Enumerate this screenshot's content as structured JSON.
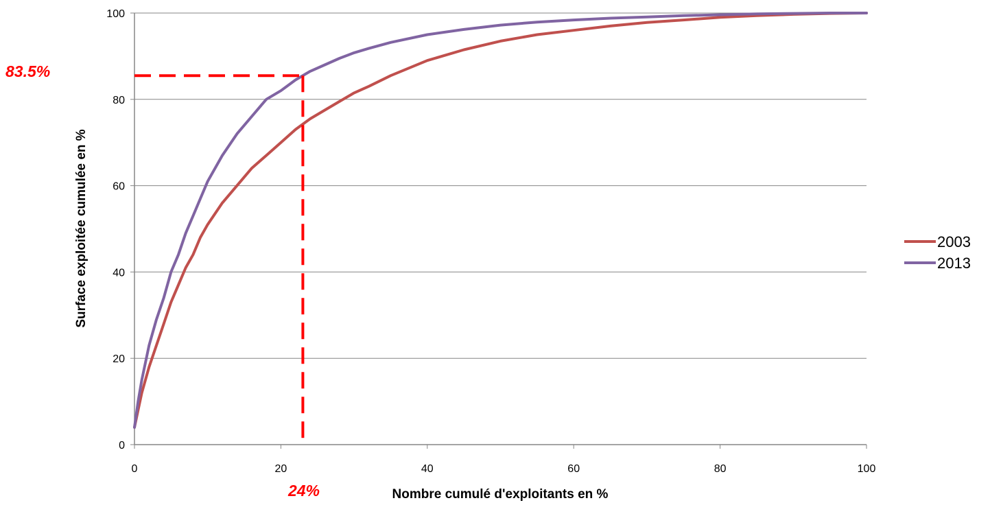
{
  "chart_data": {
    "type": "line",
    "title": "",
    "xlabel": "Nombre cumulé d'exploitants en %",
    "ylabel": "Surface exploitée cumulée en %",
    "xlim": [
      0,
      100
    ],
    "ylim": [
      0,
      100
    ],
    "x_ticks": [
      "0",
      "20",
      "40",
      "60",
      "80",
      "100"
    ],
    "y_ticks": [
      "0",
      "20",
      "40",
      "60",
      "80",
      "100"
    ],
    "grid": "horizontal",
    "legend_position": "right",
    "series": [
      {
        "name": "2003",
        "color": "#c0504d",
        "points": [
          [
            0,
            4
          ],
          [
            0.5,
            8
          ],
          [
            1,
            12
          ],
          [
            2,
            18
          ],
          [
            3,
            23
          ],
          [
            4,
            28
          ],
          [
            5,
            33
          ],
          [
            6,
            37
          ],
          [
            7,
            41
          ],
          [
            8,
            44
          ],
          [
            9,
            48
          ],
          [
            10,
            51
          ],
          [
            12,
            56
          ],
          [
            14,
            60
          ],
          [
            16,
            64
          ],
          [
            18,
            67
          ],
          [
            20,
            70
          ],
          [
            22,
            73
          ],
          [
            24,
            75.5
          ],
          [
            26,
            77.5
          ],
          [
            28,
            79.5
          ],
          [
            30,
            81.5
          ],
          [
            32,
            83
          ],
          [
            35,
            85.5
          ],
          [
            40,
            89
          ],
          [
            45,
            91.5
          ],
          [
            50,
            93.5
          ],
          [
            55,
            95
          ],
          [
            60,
            96
          ],
          [
            65,
            97
          ],
          [
            70,
            97.8
          ],
          [
            75,
            98.4
          ],
          [
            80,
            99
          ],
          [
            85,
            99.4
          ],
          [
            90,
            99.7
          ],
          [
            95,
            99.9
          ],
          [
            100,
            100
          ]
        ]
      },
      {
        "name": "2013",
        "color": "#8064a2",
        "points": [
          [
            0,
            4
          ],
          [
            0.5,
            10
          ],
          [
            1,
            15
          ],
          [
            2,
            23
          ],
          [
            3,
            29
          ],
          [
            4,
            34
          ],
          [
            5,
            40
          ],
          [
            6,
            44
          ],
          [
            7,
            49
          ],
          [
            8,
            53
          ],
          [
            9,
            57
          ],
          [
            10,
            61
          ],
          [
            12,
            67
          ],
          [
            14,
            72
          ],
          [
            16,
            76
          ],
          [
            18,
            80
          ],
          [
            20,
            82
          ],
          [
            22,
            84.5
          ],
          [
            24,
            86.5
          ],
          [
            26,
            88
          ],
          [
            28,
            89.5
          ],
          [
            30,
            90.8
          ],
          [
            32,
            91.8
          ],
          [
            35,
            93.2
          ],
          [
            40,
            95
          ],
          [
            45,
            96.2
          ],
          [
            50,
            97.2
          ],
          [
            55,
            97.9
          ],
          [
            60,
            98.4
          ],
          [
            65,
            98.8
          ],
          [
            70,
            99.1
          ],
          [
            75,
            99.4
          ],
          [
            80,
            99.6
          ],
          [
            85,
            99.8
          ],
          [
            90,
            99.9
          ],
          [
            95,
            100
          ],
          [
            100,
            100
          ]
        ]
      }
    ],
    "annotations": {
      "color": "#ff0000",
      "x_value": 23,
      "y_value": 85.5,
      "x_label": "24%",
      "y_label": "83.5%"
    }
  }
}
